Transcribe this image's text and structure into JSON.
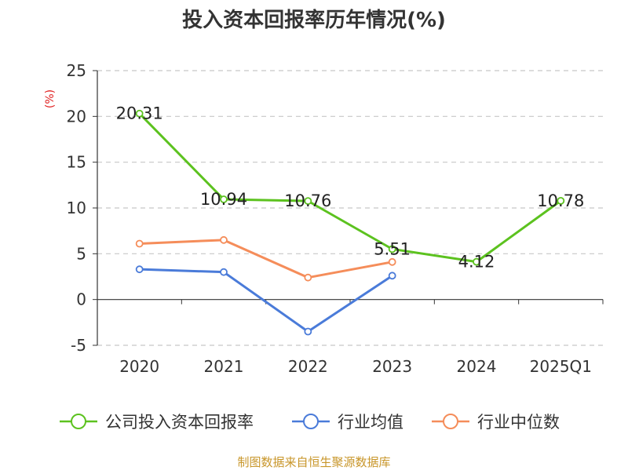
{
  "chart_data": {
    "type": "line",
    "title": "投入资本回报率历年情况(%)",
    "unit_label": "(%)",
    "categories": [
      "2020",
      "2021",
      "2022",
      "2023",
      "2024",
      "2025Q1"
    ],
    "ylim": [
      -5,
      25
    ],
    "yticks": [
      -5,
      0,
      5,
      10,
      15,
      20,
      25
    ],
    "grid": true,
    "legend_position": "bottom",
    "series": [
      {
        "name": "公司投入资本回报率",
        "color": "#5cc21f",
        "values": [
          20.31,
          10.94,
          10.76,
          5.51,
          4.12,
          10.78
        ],
        "labels": [
          "20.31",
          "10.94",
          "10.76",
          "5.51",
          "4.12",
          "10.78"
        ]
      },
      {
        "name": "行业均值",
        "color": "#4a7bd9",
        "values": [
          3.3,
          3.0,
          -3.5,
          2.6,
          null,
          null
        ]
      },
      {
        "name": "行业中位数",
        "color": "#f58d5a",
        "values": [
          6.1,
          6.5,
          2.4,
          4.1,
          null,
          null
        ]
      }
    ],
    "source": "制图数据来自恒生聚源数据库"
  }
}
